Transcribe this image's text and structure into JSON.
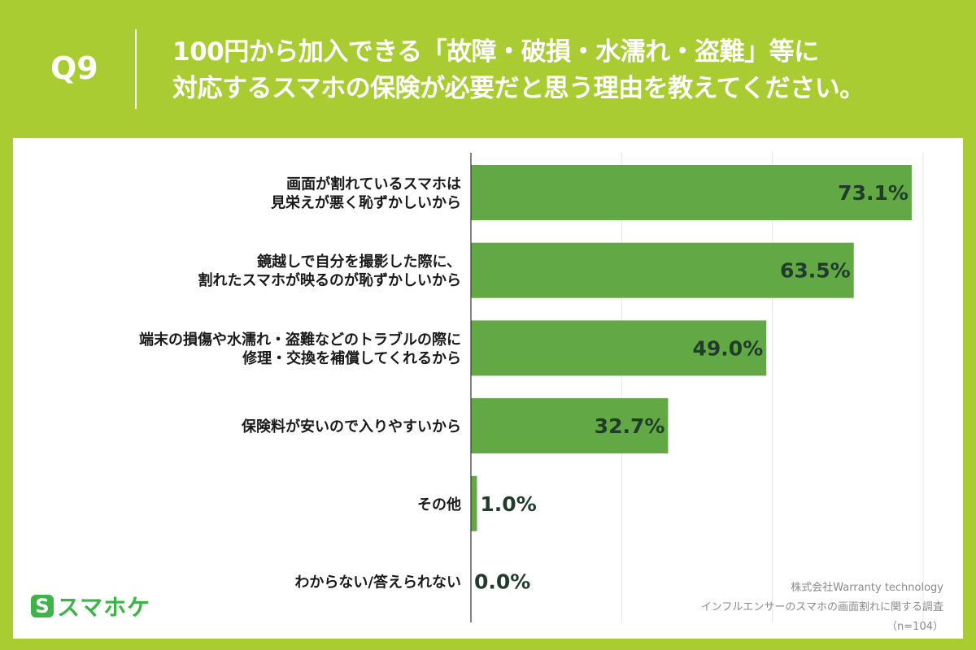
{
  "header": {
    "question_number": "Q9",
    "title_line1": "100円から加入できる「故障・破損・水濡れ・盗難」等に",
    "title_line2": "対応するスマホの保険が必要だと思う理由を教えてください。"
  },
  "footer": {
    "logo_mark": "S",
    "logo_text": "スマホケ",
    "company": "株式会社Warranty technology",
    "survey": "インフルエンサーのスマホの画面割れに関する調査",
    "sample": "（n=104）"
  },
  "colors": {
    "background": "#a9cc33",
    "bar": "#62a845",
    "value_text": "#1f3d2a",
    "label_text": "#1a1a1a",
    "grid": "#e4e4e4",
    "axis": "#333333"
  },
  "chart_data": {
    "type": "bar",
    "orientation": "horizontal",
    "unit": "%",
    "xlim": [
      0,
      100
    ],
    "grid": true,
    "categories": [
      [
        "画面が割れているスマホは",
        "見栄えが悪く恥ずかしいから"
      ],
      [
        "鏡越しで自分を撮影した際に、",
        "割れたスマホが映るのが恥ずかしいから"
      ],
      [
        "端末の損傷や水濡れ・盗難などのトラブルの際に",
        "修理・交換を補償してくれるから"
      ],
      [
        "保険料が安いので入りやすいから"
      ],
      [
        "その他"
      ],
      [
        "わからない/答えられない"
      ]
    ],
    "values": [
      73.1,
      63.5,
      49.0,
      32.7,
      1.0,
      0.0
    ],
    "value_labels": [
      "73.1%",
      "63.5%",
      "49.0%",
      "32.7%",
      "1.0%",
      "0.0%"
    ]
  }
}
